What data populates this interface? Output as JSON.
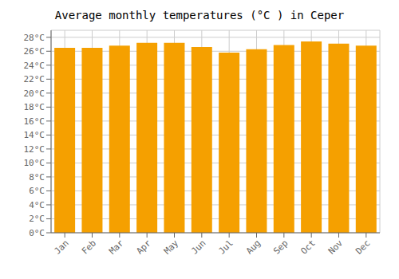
{
  "chart_data": {
    "type": "bar",
    "title": "Average monthly temperatures (°C ) in Ceper",
    "categories": [
      "Jan",
      "Feb",
      "Mar",
      "Apr",
      "May",
      "Jun",
      "Jul",
      "Aug",
      "Sep",
      "Oct",
      "Nov",
      "Dec"
    ],
    "values": [
      26.5,
      26.5,
      26.8,
      27.2,
      27.2,
      26.6,
      25.8,
      26.3,
      26.9,
      27.4,
      27.1,
      26.8
    ],
    "color": "#F5A000",
    "ylim": [
      0,
      29
    ],
    "yticks": [
      {
        "value": 0,
        "label": "0°C"
      },
      {
        "value": 2,
        "label": "2°C"
      },
      {
        "value": 4,
        "label": "4°C"
      },
      {
        "value": 6,
        "label": "6°C"
      },
      {
        "value": 8,
        "label": "8°C"
      },
      {
        "value": 10,
        "label": "10°C"
      },
      {
        "value": 12,
        "label": "12°C"
      },
      {
        "value": 14,
        "label": "14°C"
      },
      {
        "value": 16,
        "label": "16°C"
      },
      {
        "value": 18,
        "label": "18°C"
      },
      {
        "value": 20,
        "label": "20°C"
      },
      {
        "value": 22,
        "label": "22°C"
      },
      {
        "value": 24,
        "label": "24°C"
      },
      {
        "value": 26,
        "label": "26°C"
      },
      {
        "value": 28,
        "label": "28°C"
      }
    ],
    "grid": true
  }
}
